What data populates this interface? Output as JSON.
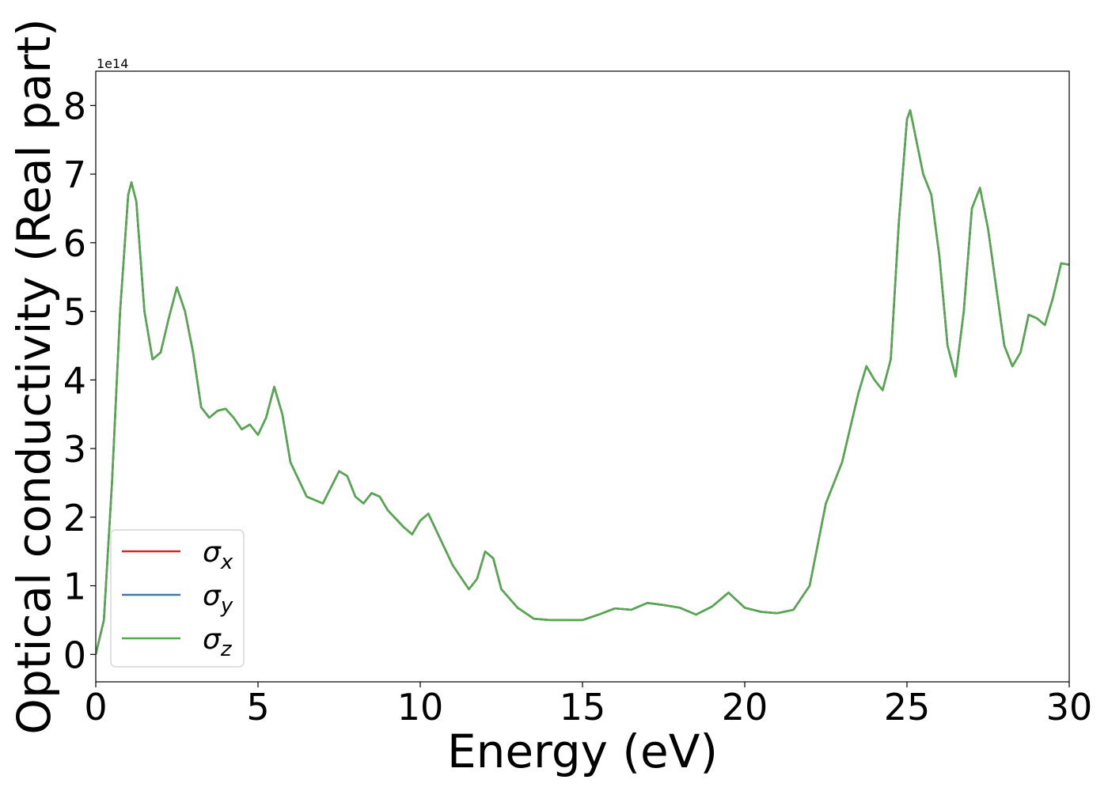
{
  "chart_data": {
    "type": "line",
    "xlabel": "Energy (eV)",
    "ylabel": "Optical conductivity (Real part)",
    "y_offset_label": "1e14",
    "x": [
      0,
      0.25,
      0.5,
      0.75,
      1.0,
      1.1,
      1.25,
      1.5,
      1.75,
      2.0,
      2.25,
      2.5,
      2.75,
      3.0,
      3.25,
      3.5,
      3.75,
      4.0,
      4.25,
      4.5,
      4.75,
      5.0,
      5.25,
      5.5,
      5.75,
      6.0,
      6.5,
      7.0,
      7.5,
      7.75,
      8.0,
      8.25,
      8.5,
      8.75,
      9.0,
      9.5,
      9.75,
      10.0,
      10.25,
      10.5,
      11.0,
      11.5,
      11.75,
      12.0,
      12.25,
      12.5,
      13.0,
      13.5,
      14.0,
      14.5,
      15.0,
      15.5,
      16.0,
      16.5,
      17.0,
      17.5,
      18.0,
      18.5,
      19.0,
      19.5,
      20.0,
      20.5,
      21.0,
      21.5,
      22.0,
      22.5,
      23.0,
      23.5,
      23.75,
      24.0,
      24.25,
      24.5,
      24.75,
      25.0,
      25.1,
      25.5,
      25.75,
      26.0,
      26.25,
      26.5,
      26.75,
      27.0,
      27.25,
      27.5,
      28.0,
      28.25,
      28.5,
      28.75,
      29.0,
      29.25,
      29.5,
      29.75,
      30.0
    ],
    "series": [
      {
        "name": "σx",
        "color": "#d62728",
        "values": [
          0,
          0.5,
          2.5,
          5.0,
          6.7,
          6.88,
          6.6,
          5.0,
          4.3,
          4.4,
          4.9,
          5.35,
          5.0,
          4.4,
          3.6,
          3.45,
          3.55,
          3.58,
          3.45,
          3.28,
          3.35,
          3.2,
          3.45,
          3.9,
          3.5,
          2.8,
          2.3,
          2.2,
          2.67,
          2.6,
          2.3,
          2.2,
          2.35,
          2.3,
          2.1,
          1.85,
          1.75,
          1.95,
          2.05,
          1.8,
          1.3,
          0.95,
          1.1,
          1.5,
          1.4,
          0.95,
          0.68,
          0.52,
          0.5,
          0.5,
          0.5,
          0.58,
          0.67,
          0.65,
          0.75,
          0.72,
          0.68,
          0.58,
          0.7,
          0.9,
          0.68,
          0.62,
          0.6,
          0.65,
          1.0,
          2.2,
          2.8,
          3.8,
          4.2,
          4.0,
          3.85,
          4.3,
          6.3,
          7.8,
          7.93,
          7.0,
          6.7,
          5.8,
          4.5,
          4.05,
          5.0,
          6.5,
          6.8,
          6.2,
          4.5,
          4.2,
          4.4,
          4.95,
          4.9,
          4.8,
          5.2,
          5.7,
          5.68
        ]
      },
      {
        "name": "σy",
        "color": "#3a78b5",
        "values": [
          0,
          0.5,
          2.5,
          5.0,
          6.7,
          6.88,
          6.6,
          5.0,
          4.3,
          4.4,
          4.9,
          5.35,
          5.0,
          4.4,
          3.6,
          3.45,
          3.55,
          3.58,
          3.45,
          3.28,
          3.35,
          3.2,
          3.45,
          3.9,
          3.5,
          2.8,
          2.3,
          2.2,
          2.67,
          2.6,
          2.3,
          2.2,
          2.35,
          2.3,
          2.1,
          1.85,
          1.75,
          1.95,
          2.05,
          1.8,
          1.3,
          0.95,
          1.1,
          1.5,
          1.4,
          0.95,
          0.68,
          0.52,
          0.5,
          0.5,
          0.5,
          0.58,
          0.67,
          0.65,
          0.75,
          0.72,
          0.68,
          0.58,
          0.7,
          0.9,
          0.68,
          0.62,
          0.6,
          0.65,
          1.0,
          2.2,
          2.8,
          3.8,
          4.2,
          4.0,
          3.85,
          4.3,
          6.3,
          7.8,
          7.93,
          7.0,
          6.7,
          5.8,
          4.5,
          4.05,
          5.0,
          6.5,
          6.8,
          6.2,
          4.5,
          4.2,
          4.4,
          4.95,
          4.9,
          4.8,
          5.2,
          5.7,
          5.68
        ]
      },
      {
        "name": "σz",
        "color": "#55a84d",
        "values": [
          0,
          0.5,
          2.5,
          5.0,
          6.7,
          6.88,
          6.6,
          5.0,
          4.3,
          4.4,
          4.9,
          5.35,
          5.0,
          4.4,
          3.6,
          3.45,
          3.55,
          3.58,
          3.45,
          3.28,
          3.35,
          3.2,
          3.45,
          3.9,
          3.5,
          2.8,
          2.3,
          2.2,
          2.67,
          2.6,
          2.3,
          2.2,
          2.35,
          2.3,
          2.1,
          1.85,
          1.75,
          1.95,
          2.05,
          1.8,
          1.3,
          0.95,
          1.1,
          1.5,
          1.4,
          0.95,
          0.68,
          0.52,
          0.5,
          0.5,
          0.5,
          0.58,
          0.67,
          0.65,
          0.75,
          0.72,
          0.68,
          0.58,
          0.7,
          0.9,
          0.68,
          0.62,
          0.6,
          0.65,
          1.0,
          2.2,
          2.8,
          3.8,
          4.2,
          4.0,
          3.85,
          4.3,
          6.3,
          7.8,
          7.93,
          7.0,
          6.7,
          5.8,
          4.5,
          4.05,
          5.0,
          6.5,
          6.8,
          6.2,
          4.5,
          4.2,
          4.4,
          4.95,
          4.9,
          4.8,
          5.2,
          5.7,
          5.68
        ]
      }
    ],
    "xlim": [
      0,
      30
    ],
    "xticks": [
      0,
      5,
      10,
      15,
      20,
      25,
      30
    ],
    "ylim": [
      -0.4,
      8.5
    ],
    "yticks": [
      0,
      1,
      2,
      3,
      4,
      5,
      6,
      7,
      8
    ],
    "grid": false,
    "legend": "lower left"
  }
}
